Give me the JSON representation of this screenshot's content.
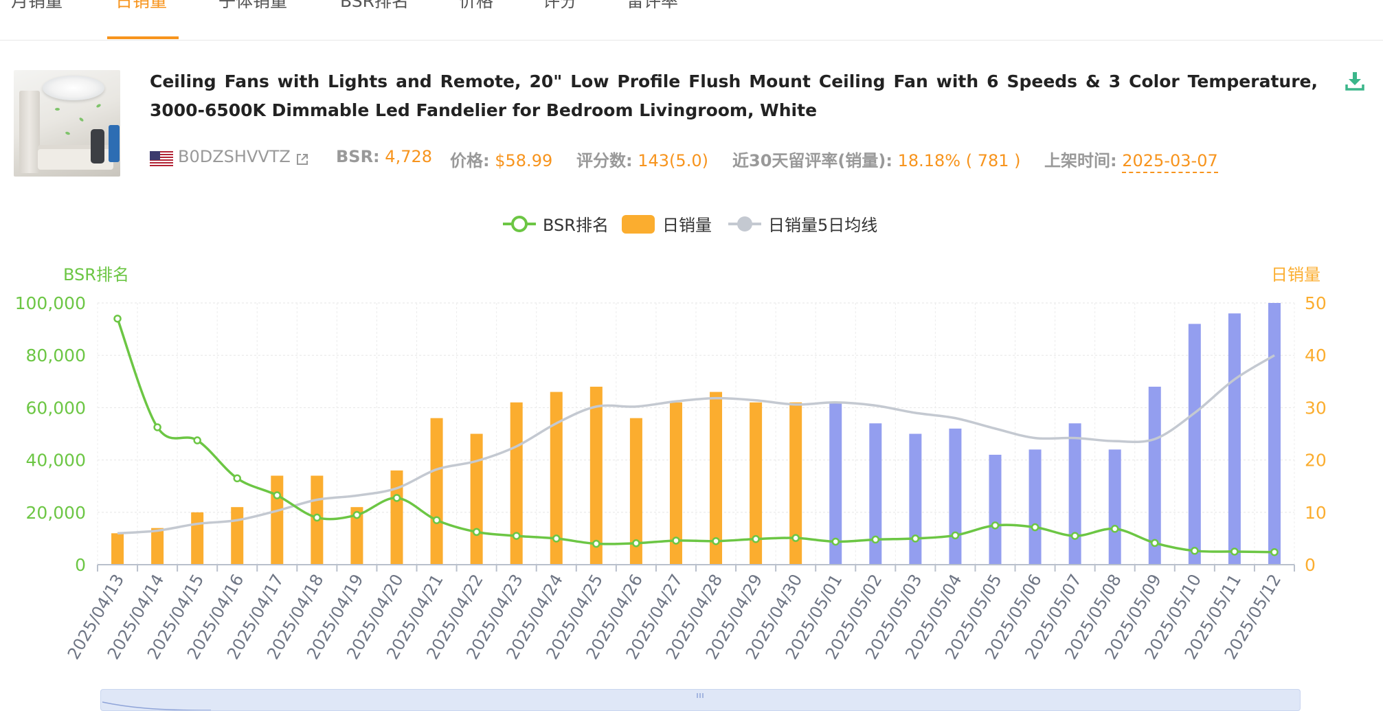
{
  "tabs": [
    {
      "label": "月销量"
    },
    {
      "label": "日销量"
    },
    {
      "label": "子体销量"
    },
    {
      "label": "BSR排名"
    },
    {
      "label": "价格"
    },
    {
      "label": "评分"
    },
    {
      "label": "留评率"
    }
  ],
  "active_tab": "日销量",
  "product": {
    "title": "Ceiling Fans with Lights and Remote, 20\" Low Profile Flush Mount Ceiling Fan with 6 Speeds & 3 Color Temperature, 3000-6500K Dimmable Led Fandelier for Bedroom Livingroom, White",
    "asin": "B0DZSHVVTZ",
    "bsr_label": "BSR:",
    "bsr_value": "4,728",
    "price_label": "价格:",
    "price_value": "$58.99",
    "ratings_label": "评分数:",
    "ratings_value": "143(5.0)",
    "review_rate_label": "近30天留评率(销量):",
    "review_rate_value": "18.18% ( 781 )",
    "listed_label": "上架时间:",
    "listed_value": "2025-03-07"
  },
  "icons": {
    "flag": "us-flag-icon",
    "external_link": "external-link-icon",
    "download": "download-icon"
  },
  "colors": {
    "accent": "#f7941d",
    "bsr_line": "#6cc644",
    "bar_past": "#fbad2f",
    "bar_forecast": "#939eef",
    "ma_line": "#c4c9d1"
  },
  "chart_data": {
    "type": "bar",
    "legend": [
      "BSR排名",
      "日销量",
      "日销量5日均线"
    ],
    "legend_position": "top-center",
    "y_left_label": "BSR排名",
    "y_right_label": "日销量",
    "y_left_range": [
      0,
      100000
    ],
    "y_right_range": [
      0,
      50
    ],
    "y_left_ticks": [
      "0",
      "20,000",
      "40,000",
      "60,000",
      "80,000",
      "100,000"
    ],
    "y_right_ticks": [
      "0",
      "10",
      "20",
      "30",
      "40",
      "50"
    ],
    "grid": true,
    "categories": [
      "2025/04/13",
      "2025/04/14",
      "2025/04/15",
      "2025/04/16",
      "2025/04/17",
      "2025/04/18",
      "2025/04/19",
      "2025/04/20",
      "2025/04/21",
      "2025/04/22",
      "2025/04/23",
      "2025/04/24",
      "2025/04/25",
      "2025/04/26",
      "2025/04/27",
      "2025/04/28",
      "2025/04/29",
      "2025/04/30",
      "2025/05/01",
      "2025/05/02",
      "2025/05/03",
      "2025/05/04",
      "2025/05/05",
      "2025/05/06",
      "2025/05/07",
      "2025/05/08",
      "2025/05/09",
      "2025/05/10",
      "2025/05/11",
      "2025/05/12"
    ],
    "series": [
      {
        "name": "日销量",
        "type": "bar",
        "values": [
          6,
          7,
          10,
          11,
          17,
          17,
          11,
          18,
          28,
          25,
          31,
          33,
          34,
          28,
          31,
          33,
          31,
          31,
          31,
          27,
          25,
          26,
          21,
          22,
          27,
          22,
          34,
          46,
          48,
          50
        ]
      },
      {
        "name": "BSR排名",
        "type": "line",
        "values": [
          94000,
          52500,
          47500,
          33000,
          26500,
          18000,
          19000,
          25500,
          17000,
          12500,
          11000,
          10000,
          8000,
          8200,
          9200,
          9000,
          9800,
          10200,
          8800,
          9600,
          10000,
          11200,
          15000,
          14300,
          11000,
          13700,
          8300,
          5300,
          5000,
          4800
        ]
      },
      {
        "name": "日销量5日均线",
        "type": "line",
        "values": [
          6,
          6.5,
          7.8,
          8.5,
          10.3,
          12.4,
          13.2,
          14.6,
          18.2,
          19.8,
          22.6,
          27.0,
          30.2,
          30.2,
          31.2,
          31.8,
          31.4,
          30.6,
          31.0,
          30.4,
          29.0,
          28.0,
          26.0,
          24.2,
          24.2,
          23.6,
          24.0,
          29.0,
          35.4,
          40.0
        ]
      }
    ]
  }
}
